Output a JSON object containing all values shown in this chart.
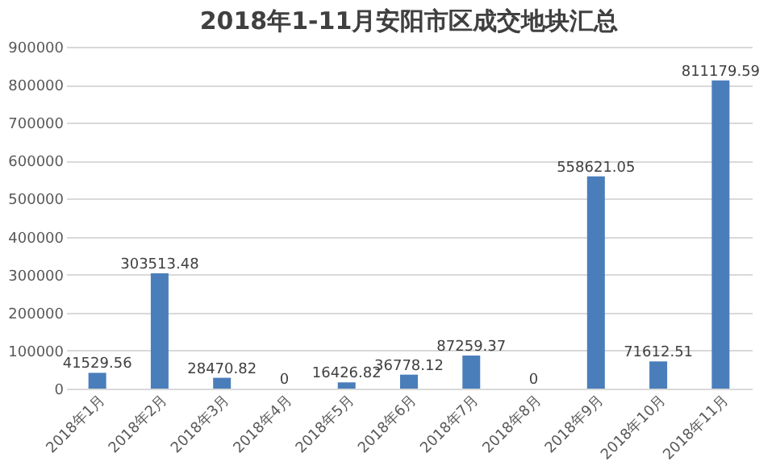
{
  "chart_data": {
    "type": "bar",
    "title": "2018年1-11月安阳市区成交地块汇总",
    "categories": [
      "2018年1月",
      "2018年2月",
      "2018年3月",
      "2018年4月",
      "2018年5月",
      "2018年6月",
      "2018年7月",
      "2018年8月",
      "2018年9月",
      "2018年10月",
      "2018年11月"
    ],
    "values": [
      41529.56,
      303513.48,
      28470.82,
      0,
      16426.82,
      36778.12,
      87259.37,
      0,
      558621.05,
      71612.51,
      811179.59
    ],
    "color": "#4a7ebb",
    "ylim": [
      0,
      900000
    ],
    "yticks": [
      0,
      100000,
      200000,
      300000,
      400000,
      500000,
      600000,
      700000,
      800000,
      900000
    ],
    "grid": "y",
    "data_labels": true
  }
}
